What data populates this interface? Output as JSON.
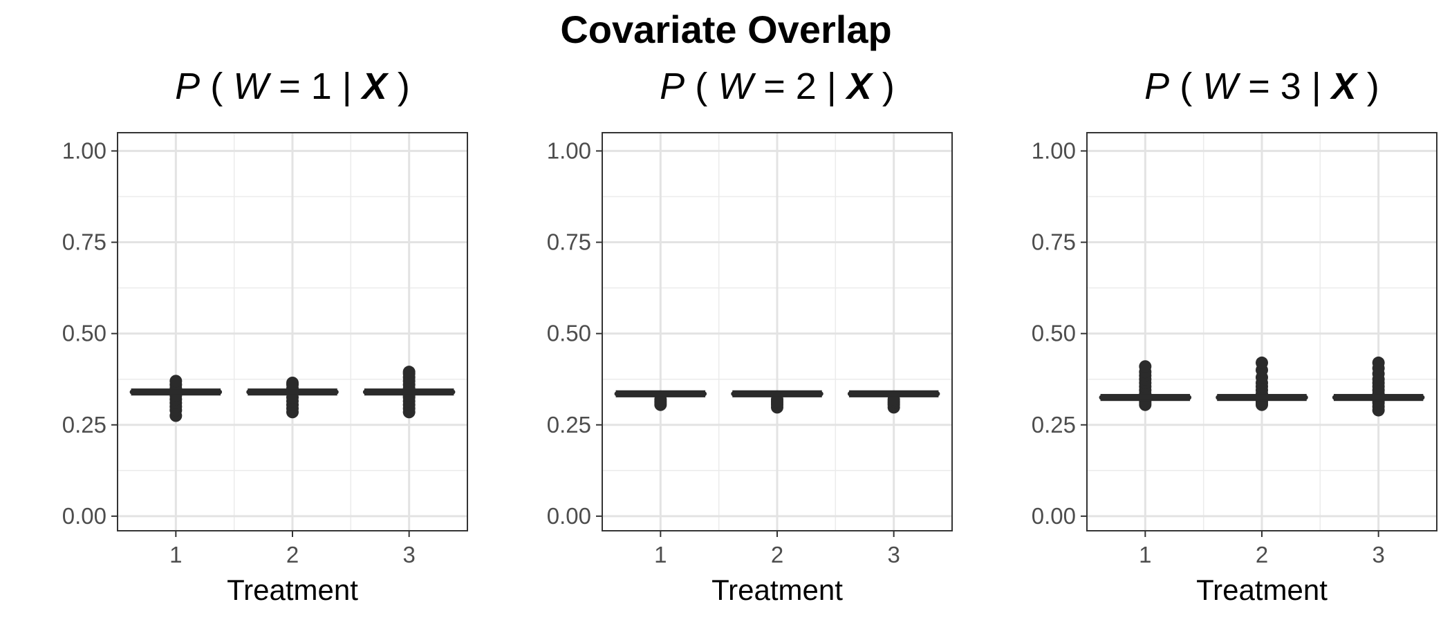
{
  "title": "Covariate Overlap",
  "chart_data": [
    {
      "type": "boxplot",
      "title_parts": [
        "P",
        "(",
        "W",
        "= 1 |",
        "X",
        ")"
      ],
      "xlabel": "Treatment",
      "ylabel": "",
      "categories": [
        "1",
        "2",
        "3"
      ],
      "ylim": [
        -0.04,
        1.05
      ],
      "yticks": [
        0.0,
        0.25,
        0.5,
        0.75,
        1.0
      ],
      "ytick_labels": [
        "0.00",
        "0.25",
        "0.50",
        "0.75",
        "1.00"
      ],
      "grid": true,
      "boxes": [
        {
          "median": 0.34,
          "q1": 0.337,
          "q3": 0.343,
          "outliers": [
            0.275,
            0.29,
            0.3,
            0.31,
            0.32,
            0.33,
            0.35,
            0.36,
            0.37
          ]
        },
        {
          "median": 0.34,
          "q1": 0.337,
          "q3": 0.343,
          "outliers": [
            0.285,
            0.295,
            0.305,
            0.315,
            0.325,
            0.35,
            0.36,
            0.365
          ]
        },
        {
          "median": 0.34,
          "q1": 0.337,
          "q3": 0.343,
          "outliers": [
            0.285,
            0.295,
            0.305,
            0.315,
            0.325,
            0.33,
            0.35,
            0.36,
            0.37,
            0.38,
            0.39,
            0.395
          ]
        }
      ]
    },
    {
      "type": "boxplot",
      "title_parts": [
        "P",
        "(",
        "W",
        "= 2 |",
        "X",
        ")"
      ],
      "xlabel": "Treatment",
      "ylabel": "",
      "categories": [
        "1",
        "2",
        "3"
      ],
      "ylim": [
        -0.04,
        1.05
      ],
      "yticks": [
        0.0,
        0.25,
        0.5,
        0.75,
        1.0
      ],
      "ytick_labels": [
        "0.00",
        "0.25",
        "0.50",
        "0.75",
        "1.00"
      ],
      "grid": true,
      "boxes": [
        {
          "median": 0.335,
          "q1": 0.332,
          "q3": 0.338,
          "outliers": [
            0.305,
            0.31,
            0.315,
            0.32
          ]
        },
        {
          "median": 0.335,
          "q1": 0.332,
          "q3": 0.338,
          "outliers": [
            0.298,
            0.305,
            0.31,
            0.315,
            0.32
          ]
        },
        {
          "median": 0.335,
          "q1": 0.332,
          "q3": 0.338,
          "outliers": [
            0.298,
            0.305,
            0.31,
            0.315,
            0.32
          ]
        }
      ]
    },
    {
      "type": "boxplot",
      "title_parts": [
        "P",
        "(",
        "W",
        "= 3 |",
        "X",
        ")"
      ],
      "xlabel": "Treatment",
      "ylabel": "",
      "categories": [
        "1",
        "2",
        "3"
      ],
      "ylim": [
        -0.04,
        1.05
      ],
      "yticks": [
        0.0,
        0.25,
        0.5,
        0.75,
        1.0
      ],
      "ytick_labels": [
        "0.00",
        "0.25",
        "0.50",
        "0.75",
        "1.00"
      ],
      "grid": true,
      "boxes": [
        {
          "median": 0.325,
          "q1": 0.322,
          "q3": 0.328,
          "outliers": [
            0.305,
            0.31,
            0.315,
            0.335,
            0.345,
            0.355,
            0.365,
            0.375,
            0.385,
            0.395,
            0.41
          ]
        },
        {
          "median": 0.325,
          "q1": 0.322,
          "q3": 0.328,
          "outliers": [
            0.305,
            0.31,
            0.315,
            0.335,
            0.345,
            0.355,
            0.365,
            0.38,
            0.4,
            0.42
          ]
        },
        {
          "median": 0.325,
          "q1": 0.322,
          "q3": 0.328,
          "outliers": [
            0.29,
            0.3,
            0.31,
            0.315,
            0.335,
            0.345,
            0.355,
            0.365,
            0.375,
            0.39,
            0.405,
            0.42
          ]
        }
      ]
    }
  ]
}
